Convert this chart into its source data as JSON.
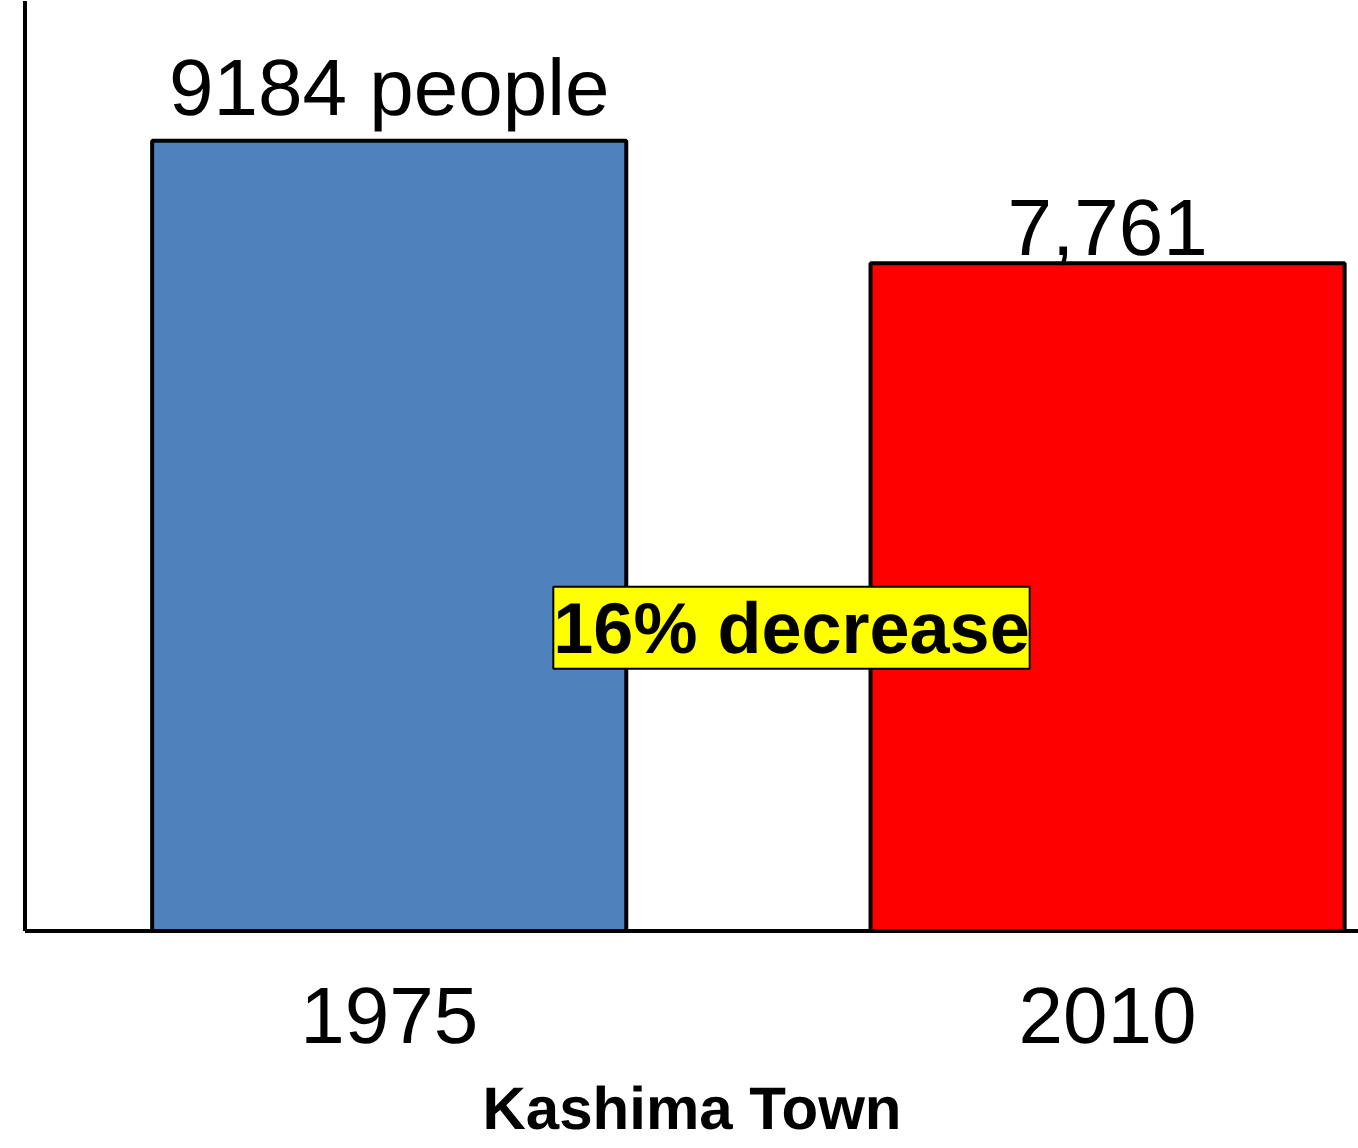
{
  "chart_data": {
    "type": "bar",
    "categories": [
      "1975",
      "2010"
    ],
    "values": [
      9184,
      7761
    ],
    "colors": [
      "#4f81bd",
      "#ff0000"
    ],
    "value_labels": [
      "9184 people",
      "7,761"
    ],
    "xlabel": "Kashima Town",
    "annotations": [
      "16% decrease"
    ]
  }
}
